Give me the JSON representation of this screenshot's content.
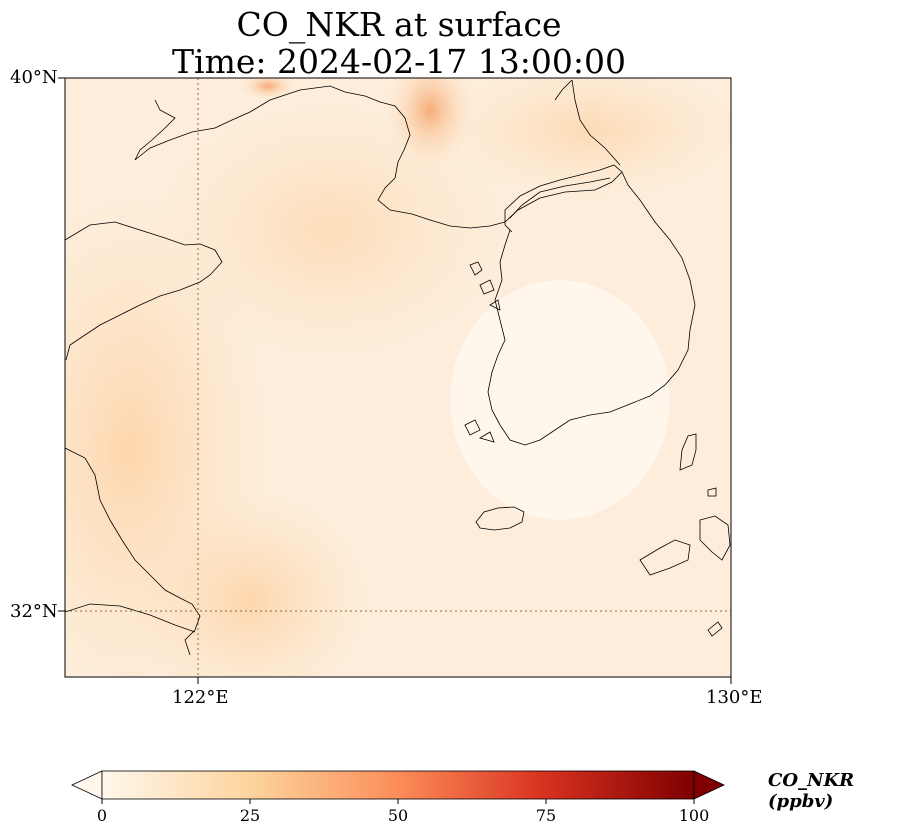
{
  "title": {
    "line1": "CO_NKR at surface",
    "line2": "Time: 2024-02-17 13:00:00"
  },
  "map": {
    "lon_range": [
      119,
      130
    ],
    "lat_range": [
      31,
      40
    ],
    "grid_lon": [
      122
    ],
    "grid_lat": [
      32
    ],
    "lon_labels": [
      "122°E",
      "130°E"
    ],
    "lat_labels": [
      "40°N",
      "32°N"
    ],
    "colors": {
      "land_coast": "#000000",
      "gridline": "#8a6a4a"
    }
  },
  "colorbar": {
    "label": "CO_NKR (ppbv)",
    "min": 0,
    "max": 100,
    "ticks": [
      "0",
      "25",
      "50",
      "75",
      "100"
    ],
    "colormap": "OrRd",
    "stops": [
      "#fff7ec",
      "#fdd49e",
      "#fc8d59",
      "#d7301f",
      "#7f0000"
    ]
  }
}
